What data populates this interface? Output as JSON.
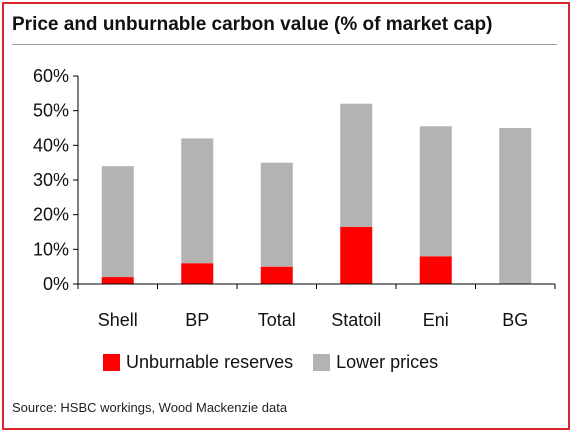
{
  "title": "Price and unburnable carbon value (% of market cap)",
  "source": "Source: HSBC workings, Wood Mackenzie data",
  "chart_data": {
    "type": "bar",
    "stacked": true,
    "title": "Price and unburnable carbon value (% of market cap)",
    "xlabel": "",
    "ylabel": "",
    "categories": [
      "Shell",
      "BP",
      "Total",
      "Statoil",
      "Eni",
      "BG"
    ],
    "series": [
      {
        "name": "Unburnable reserves",
        "color": "#ff0000",
        "values": [
          2,
          6,
          5,
          16.5,
          8,
          0
        ]
      },
      {
        "name": "Lower prices",
        "color": "#b3b3b3",
        "values": [
          32,
          36,
          30,
          35.5,
          37.5,
          45
        ]
      }
    ],
    "ylim": [
      0,
      60
    ],
    "yticks": [
      0,
      10,
      20,
      30,
      40,
      50,
      60
    ],
    "ytick_labels": [
      "0%",
      "10%",
      "20%",
      "30%",
      "40%",
      "50%",
      "60%"
    ],
    "grid": false,
    "legend_position": "bottom"
  }
}
